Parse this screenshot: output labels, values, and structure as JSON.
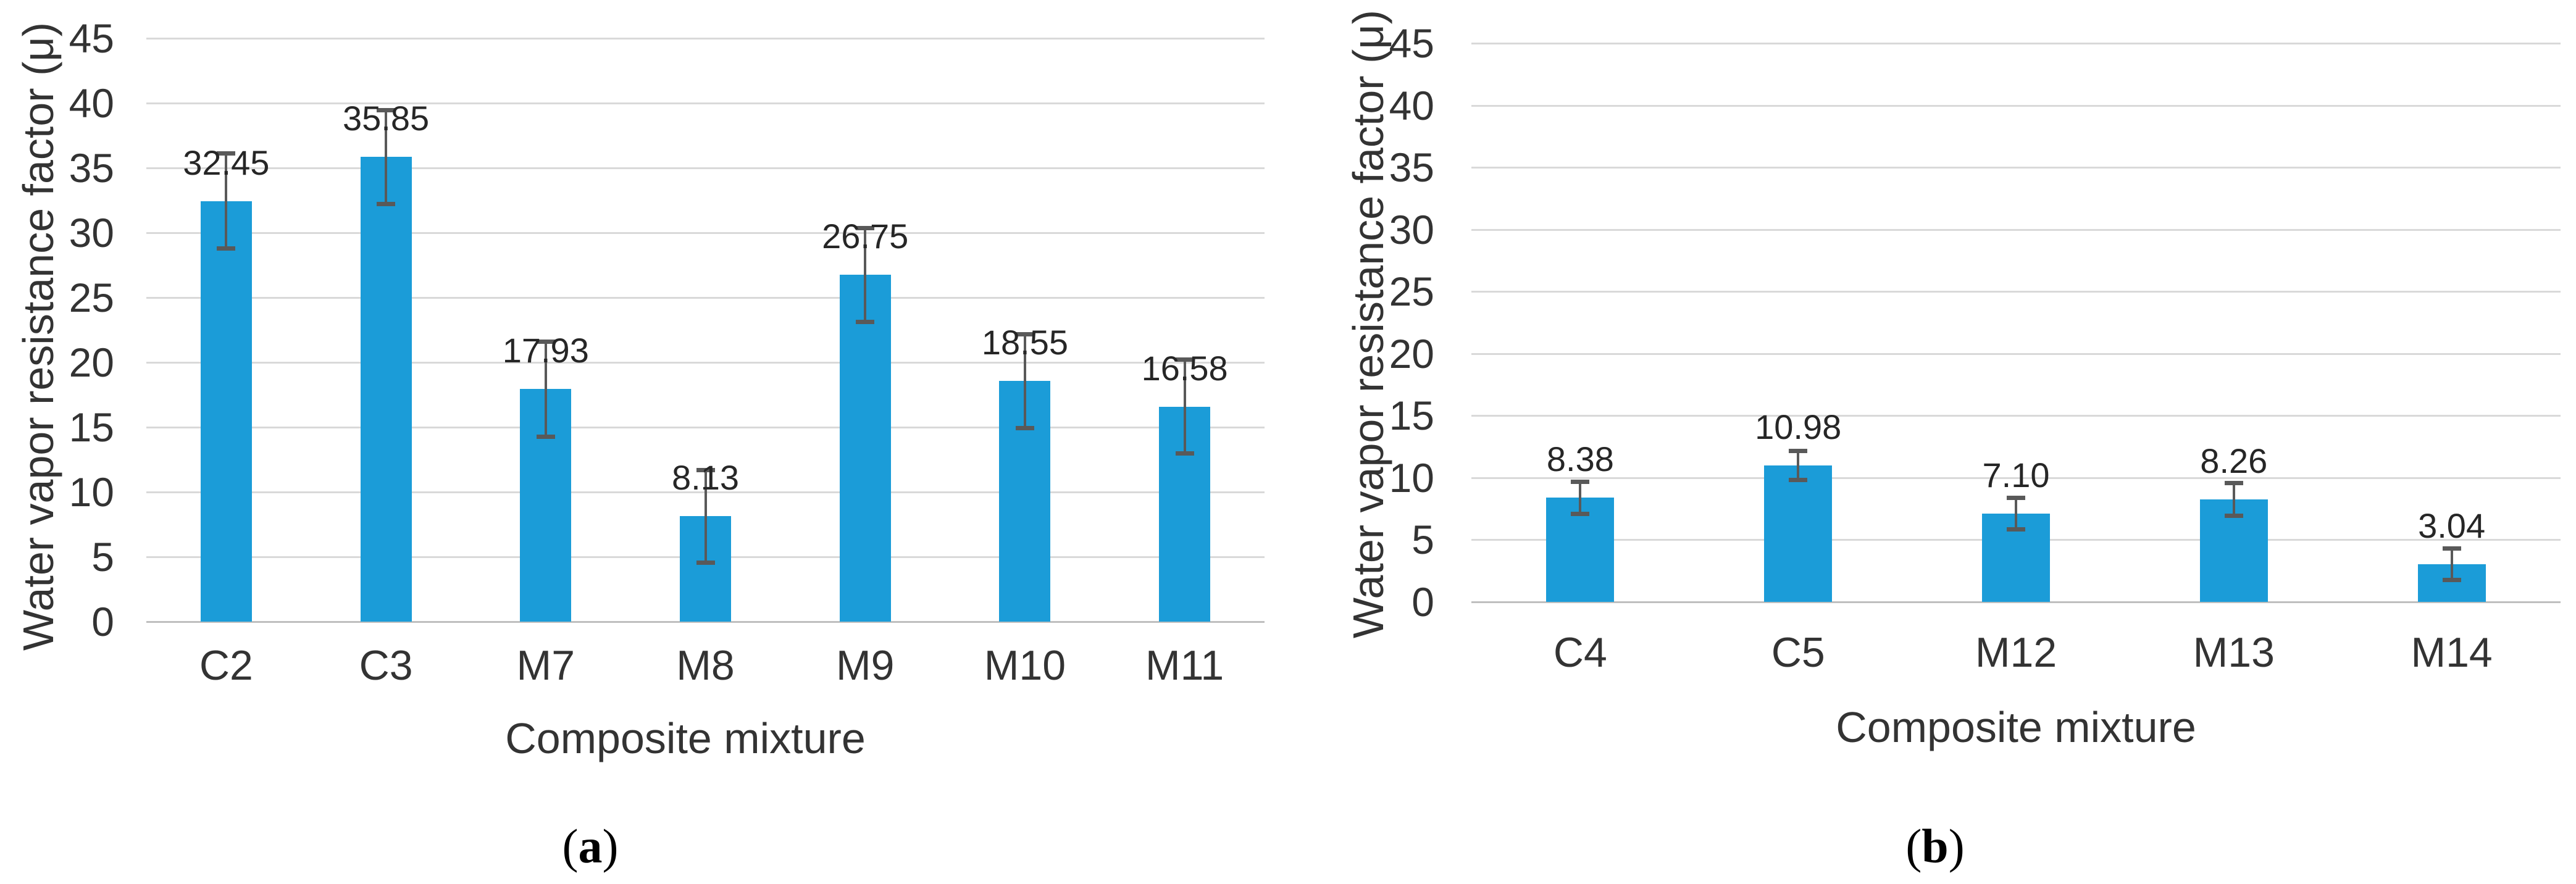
{
  "figure": {
    "background": "#ffffff",
    "captions": [
      {
        "open": "(",
        "letter": "a",
        "close": ")"
      },
      {
        "open": "(",
        "letter": "b",
        "close": ")"
      }
    ]
  },
  "chart_data": [
    {
      "type": "bar",
      "panel": "a",
      "title": "",
      "xlabel": "Composite mixture",
      "ylabel": "Water vapor resistance factor (μ)",
      "ylim": [
        0,
        45
      ],
      "ytick_step": 5,
      "grid": true,
      "legend": null,
      "categories": [
        "C2",
        "C3",
        "M7",
        "M8",
        "M9",
        "M10",
        "M11"
      ],
      "values": [
        32.45,
        35.85,
        17.93,
        8.13,
        26.75,
        18.55,
        16.58
      ],
      "labels": [
        "32.45",
        "35.85",
        "17.93",
        "8.13",
        "26.75",
        "18.55",
        "16.58"
      ],
      "error_bars": [
        3.7,
        3.65,
        3.7,
        3.6,
        3.65,
        3.65,
        3.65
      ],
      "bar_color": "#1b9cd8",
      "error_color": "#595959",
      "gridline_color": "#d9d9d9"
    },
    {
      "type": "bar",
      "panel": "b",
      "title": "",
      "xlabel": "Composite mixture",
      "ylabel": "Water vapor resistance factor (μ)",
      "ylim": [
        0,
        45
      ],
      "ytick_step": 5,
      "grid": true,
      "legend": null,
      "categories": [
        "C4",
        "C5",
        "M12",
        "M13",
        "M14"
      ],
      "values": [
        8.38,
        10.98,
        7.1,
        8.26,
        3.04
      ],
      "labels": [
        "8.38",
        "10.98",
        "7.10",
        "8.26",
        "3.04"
      ],
      "error_bars": [
        1.3,
        1.2,
        1.3,
        1.35,
        1.3
      ],
      "bar_color": "#1b9cd8",
      "error_color": "#595959",
      "gridline_color": "#d9d9d9"
    }
  ]
}
